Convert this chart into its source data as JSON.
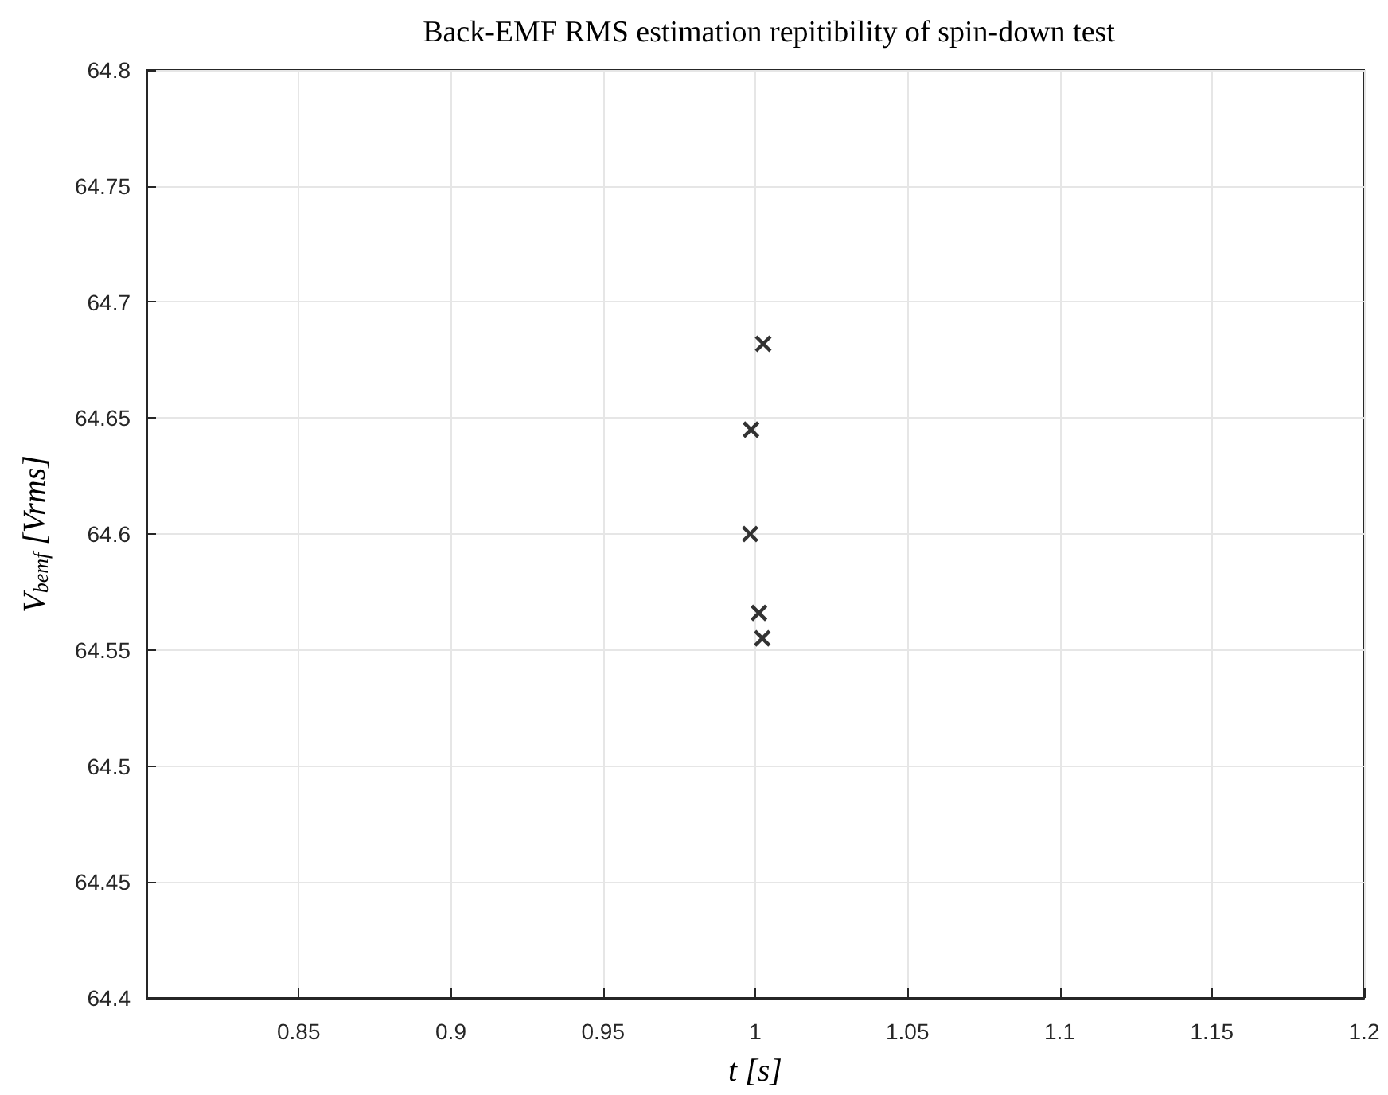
{
  "chart_data": {
    "type": "scatter",
    "title": "Back-EMF RMS estimation repitibility of spin-down test",
    "xlabel": "t [s]",
    "ylabel": "V$_{bemf}$ [Vrms]",
    "x": [
      1.0026,
      0.9986,
      0.9983,
      1.0012,
      1.0023
    ],
    "values": [
      64.682,
      64.645,
      64.6,
      64.566,
      64.555
    ],
    "color": "#000000",
    "marker": "cross",
    "grid": true,
    "xlim": [
      0.8,
      1.2
    ],
    "xticks": [
      0.85,
      0.9,
      0.95,
      1,
      1.05,
      1.1,
      1.15,
      1.2
    ],
    "ylim": [
      64.4,
      64.8
    ],
    "yticks": [
      64.4,
      64.45,
      64.5,
      64.55,
      64.6,
      64.65,
      64.7,
      64.75,
      64.8
    ]
  }
}
